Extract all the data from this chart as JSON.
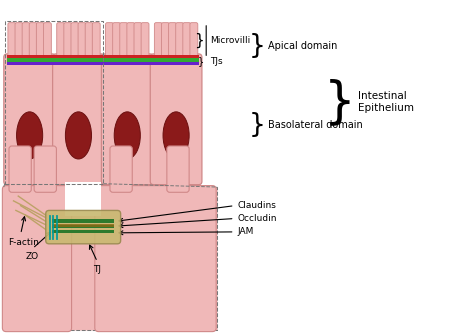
{
  "bg_color": "#ffffff",
  "skin_color": "#f0b8b8",
  "cell_outline": "#d08888",
  "nucleus_color": "#8b1a1a",
  "nucleus_outline": "#6b1010",
  "tj_colors": [
    "#cc2222",
    "#33aa33",
    "#6622cc"
  ],
  "stripe_green": "#2d7a2d",
  "stripe_green2": "#4a9a4a",
  "stripe_brown": "#8B6914",
  "stripe_teal": "#009999",
  "stripe_khaki": "#c8b870",
  "stripe_khaki_edge": "#9a8a50",
  "actin_color": "#b8a060",
  "labels": {
    "microvilli": "Microvilli",
    "tjs": "TJs",
    "apical": "Apical domain",
    "basolateral": "Basolateral domain",
    "intestinal": "Intestinal\nEpithelium",
    "claudins": "Claudins",
    "occludin": "Occludin",
    "jam": "JAM",
    "tj": "TJ",
    "factin": "F-actin",
    "zo": "ZO"
  },
  "figsize": [
    4.74,
    3.34
  ],
  "dpi": 100,
  "xlim": [
    0,
    10
  ],
  "ylim": [
    0,
    7
  ]
}
